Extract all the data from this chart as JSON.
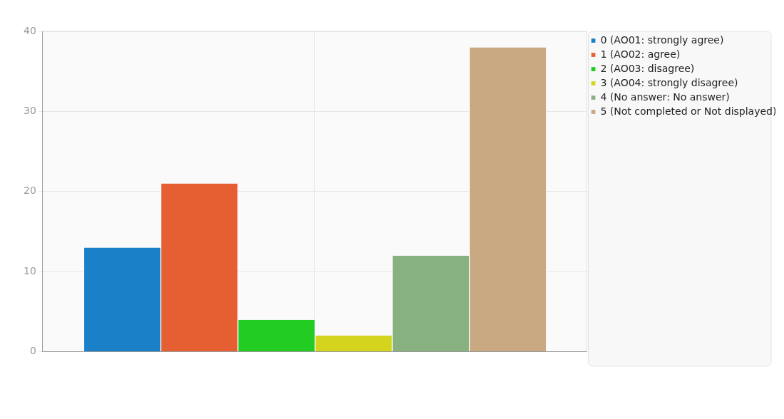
{
  "chart_data": {
    "type": "bar",
    "categories": [
      null
    ],
    "series": [
      {
        "name": "0 (AO01: strongly agree)",
        "color": "#1a80c8",
        "values": [
          13
        ]
      },
      {
        "name": "1 (AO02: agree)",
        "color": "#e65f33",
        "values": [
          21
        ]
      },
      {
        "name": "2 (AO03: disagree)",
        "color": "#22cc22",
        "values": [
          4
        ]
      },
      {
        "name": "3 (AO04: strongly disagree)",
        "color": "#d4d41f",
        "values": [
          2
        ]
      },
      {
        "name": "4 (No answer: No answer)",
        "color": "#88b180",
        "values": [
          12
        ]
      },
      {
        "name": "5 (Not completed or Not displayed)",
        "color": "#c8a982",
        "values": [
          38
        ]
      }
    ],
    "ylim": [
      0,
      40
    ],
    "yticks": [
      0,
      10,
      20,
      30,
      40
    ],
    "grid": true,
    "legend": "top right"
  }
}
